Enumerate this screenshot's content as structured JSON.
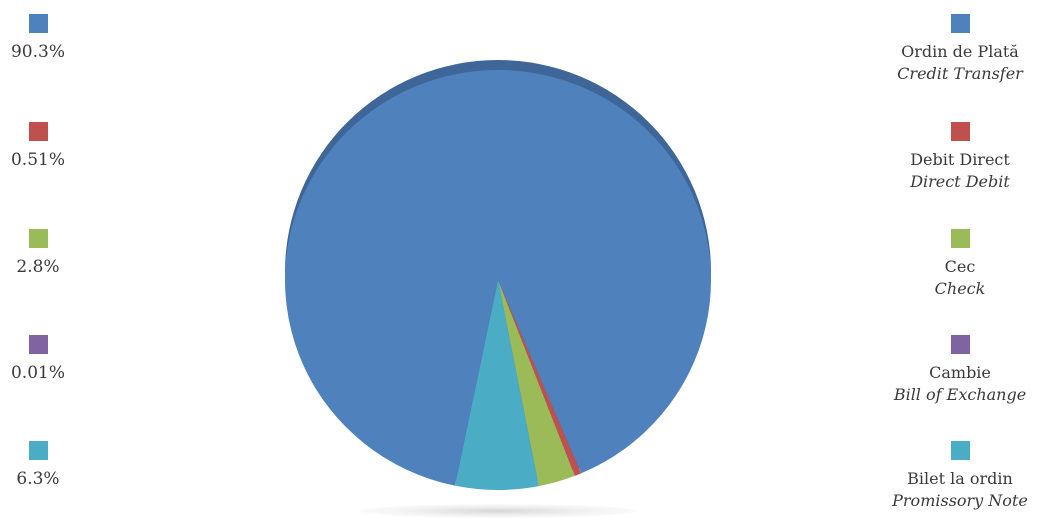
{
  "chart_data": {
    "type": "pie",
    "title": "",
    "legend_left": "left",
    "legend_right": "right",
    "slices": [
      {
        "value": 90.3,
        "value_label": "90.3%",
        "label": "Ordin de Plată",
        "label_en": "Credit Transfer",
        "color": "#4F81BD"
      },
      {
        "value": 0.51,
        "value_label": "0.51%",
        "label": "Debit Direct",
        "label_en": "Direct Debit",
        "color": "#C0504D"
      },
      {
        "value": 2.8,
        "value_label": "2.8%",
        "label": "Cec",
        "label_en": "Check",
        "color": "#9BBB59"
      },
      {
        "value": 0.01,
        "value_label": "0.01%",
        "label": "Cambie",
        "label_en": "Bill of Exchange",
        "color": "#8064A2"
      },
      {
        "value": 6.3,
        "value_label": "6.3%",
        "label": "Bilet la ordin",
        "label_en": "Promissory Note",
        "color": "#4BACC6"
      }
    ]
  }
}
